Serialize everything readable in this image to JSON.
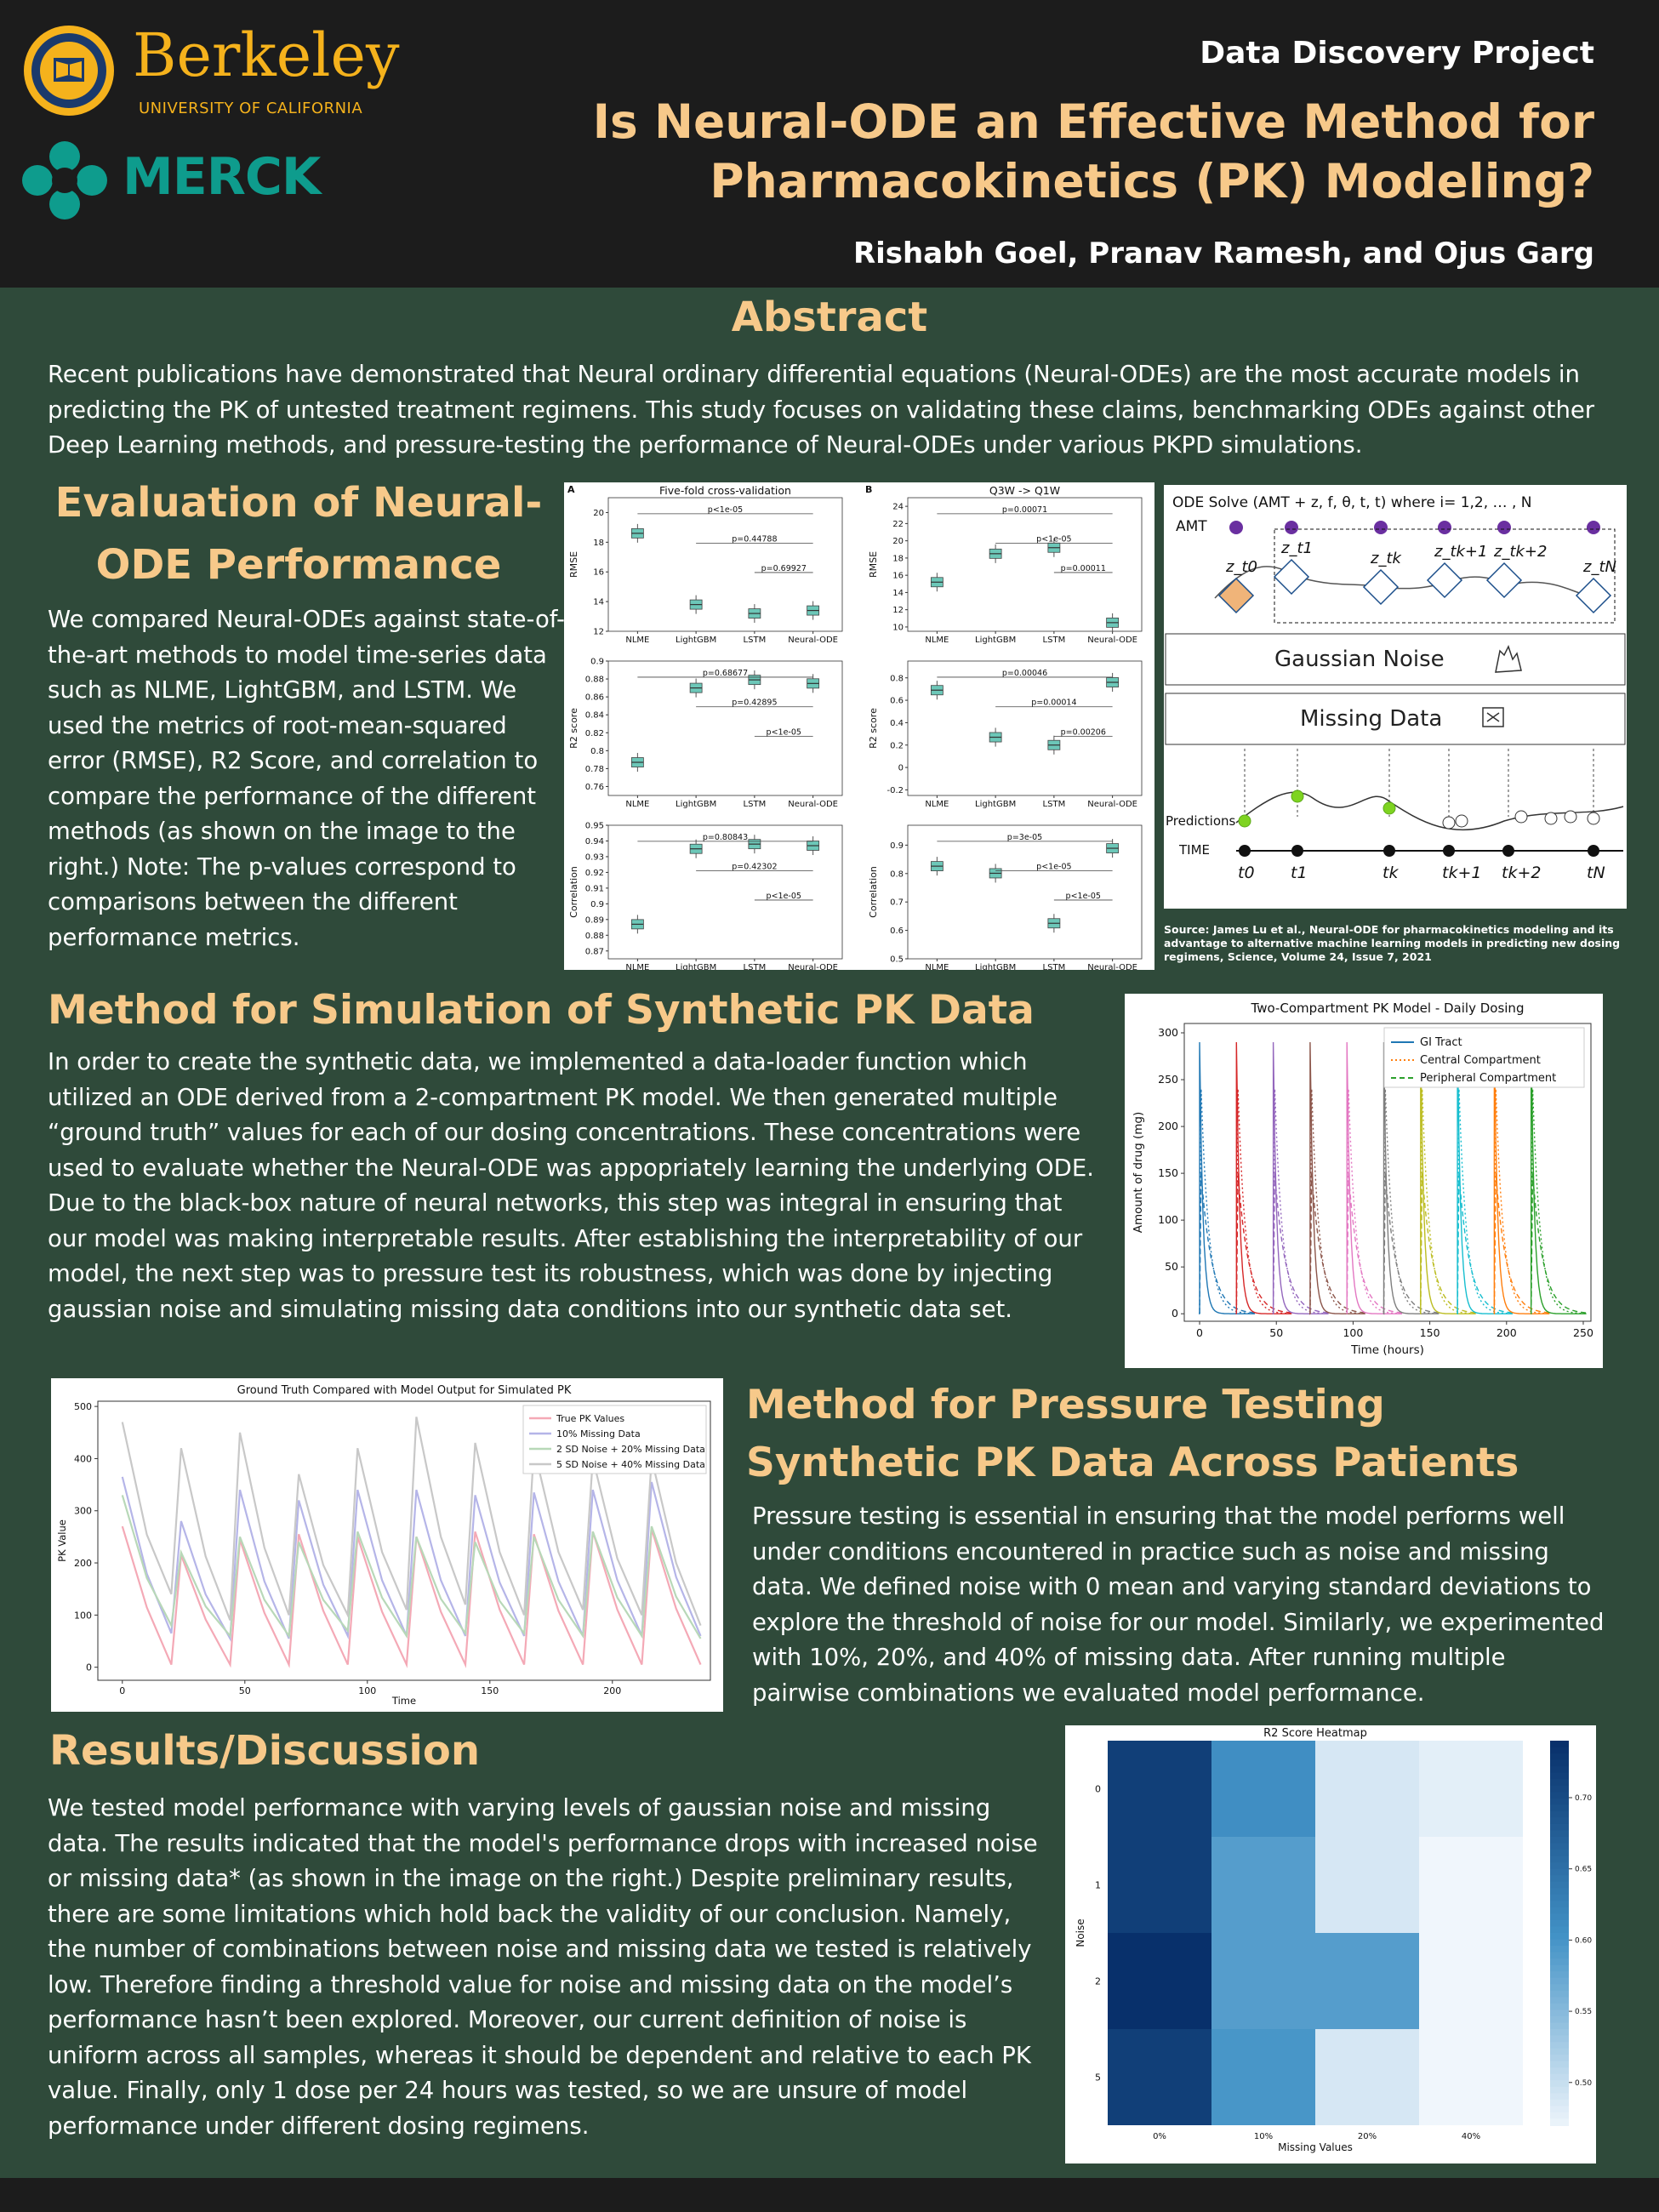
{
  "header": {
    "berkeley_wordmark": "Berkeley",
    "berkeley_sub": "UNIVERSITY OF CALIFORNIA",
    "merck_wordmark": "MERCK",
    "project": "Data Discovery Project",
    "title_line1": "Is Neural-ODE an Effective Method for",
    "title_line2": "Pharmacokinetics (PK) Modeling?",
    "authors": "Rishabh Goel, Pranav Ramesh, and Ojus Garg"
  },
  "abstract": {
    "heading": "Abstract",
    "text": "Recent publications have demonstrated that Neural ordinary differential equations (Neural-ODEs) are the most accurate models in predicting the PK of untested treatment regimens. This study focuses on validating these claims, benchmarking ODEs against other Deep Learning methods, and pressure-testing the performance of Neural-ODEs under various PKPD simulations."
  },
  "evaluation": {
    "heading_line1": "Evaluation of Neural-",
    "heading_line2": "ODE Performance",
    "text": "We compared Neural-ODEs against state-of-the-art methods to model time-series data such as NLME, LightGBM, and LSTM. We used the metrics of root-mean-squared error (RMSE), R2 Score, and correlation to compare the performance of the different methods (as shown on the image to the right.) Note: The p-values correspond to comparisons between the different performance metrics."
  },
  "diagram": {
    "ode_label": "ODE Solve (AMT + z, f, θ, t, t) where i= 1,2, … , N",
    "amt_label": "AMT",
    "z_labels": [
      "z_t0",
      "z_t1",
      "z_tk",
      "z_tk+1",
      "z_tk+2",
      "z_tN"
    ],
    "gaussian_noise": "Gaussian Noise",
    "missing_data": "Missing Data",
    "predictions_label": "Predictions",
    "time_label": "TIME",
    "t_labels": [
      "t0",
      "t1",
      "tk",
      "tk+1",
      "tk+2",
      "tN"
    ],
    "source": "Source: James Lu et al., Neural-ODE for pharmacokinetics modeling and its advantage to alternative machine learning models in predicting new dosing regimens, Science, Volume 24, Issue 7, 2021"
  },
  "method_sim": {
    "heading": "Method for Simulation of Synthetic PK Data",
    "text": "In order to create the synthetic data, we implemented a data-loader function which utilized an ODE derived from a 2-compartment PK model. We then generated multiple “ground truth” values for each of our dosing concentrations. These concentrations were used to evaluate whether the Neural-ODE was appopriately learning the underlying ODE. Due to the black-box nature of neural networks, this step was integral in ensuring that our model was making interpretable results. After establishing the interpretability of our model, the next step was to pressure test its robustness, which was done by injecting gaussian noise and simulating missing data conditions into our synthetic data set."
  },
  "method_pressure": {
    "heading_line1": "Method for Pressure Testing",
    "heading_line2": "Synthetic PK Data Across Patients",
    "text": "Pressure testing is essential in ensuring that the model performs well under conditions encountered in practice such as noise and missing data. We defined noise with 0 mean and varying standard deviations to explore the threshold of noise for our model. Similarly, we experimented with 10%, 20%, and 40% of missing data. After running multiple pairwise combinations we evaluated model performance."
  },
  "results": {
    "heading": "Results/Discussion",
    "text": "We tested model performance with varying levels of gaussian noise and missing data. The results indicated that the model's performance drops with increased noise or missing data* (as shown in the image on the right.) Despite preliminary results, there are some limitations which hold back the validity of our conclusion. Namely, the number of combinations between noise and missing data we tested is relatively low. Therefore finding a threshold value for noise and missing data on the model’s performance hasn’t been explored. Moreover, our current definition of noise is uniform across all samples, whereas it should be dependent and relative to each PK value. Finally, only 1 dose per 24 hours was tested, so we are unsure of model performance under different dosing regimens."
  },
  "chart_data": [
    {
      "type": "box",
      "panel": "A",
      "title": "Five-fold cross-validation",
      "categories": [
        "NLME",
        "LightGBM",
        "LSTM",
        "Neural-ODE"
      ],
      "subplots": [
        {
          "ylabel": "RMSE",
          "yticks": [
            12,
            14,
            16,
            18,
            20
          ],
          "ylim": [
            12,
            21
          ],
          "medians": [
            18.6,
            13.8,
            13.2,
            13.4
          ],
          "pvalues": [
            "p<1e-05",
            "p=0.44788",
            "p=0.69927"
          ]
        },
        {
          "ylabel": "R2 score",
          "yticks": [
            0.76,
            0.78,
            0.8,
            0.82,
            0.84,
            0.86,
            0.88,
            0.9
          ],
          "ylim": [
            0.75,
            0.9
          ],
          "medians": [
            0.787,
            0.87,
            0.879,
            0.875
          ],
          "pvalues": [
            "p=0.68677",
            "p=0.42895",
            "p<1e-05"
          ]
        },
        {
          "ylabel": "Correlation",
          "yticks": [
            0.87,
            0.88,
            0.89,
            0.9,
            0.91,
            0.92,
            0.93,
            0.94,
            0.95
          ],
          "ylim": [
            0.865,
            0.95
          ],
          "medians": [
            0.887,
            0.935,
            0.938,
            0.937
          ],
          "pvalues": [
            "p=0.80843",
            "p=0.42302",
            "p<1e-05"
          ]
        }
      ]
    },
    {
      "type": "box",
      "panel": "B",
      "title": "Q3W -> Q1W",
      "categories": [
        "NLME",
        "LightGBM",
        "LSTM",
        "Neural-ODE"
      ],
      "subplots": [
        {
          "ylabel": "RMSE",
          "yticks": [
            10,
            12,
            14,
            16,
            18,
            20,
            22,
            24
          ],
          "ylim": [
            9.5,
            25
          ],
          "medians": [
            15.2,
            18.5,
            19.2,
            10.5
          ],
          "pvalues": [
            "p=0.00071",
            "p<1e-05",
            "p=0.00011"
          ]
        },
        {
          "ylabel": "R2 score",
          "yticks": [
            -0.2,
            0.0,
            0.2,
            0.4,
            0.6,
            0.8
          ],
          "ylim": [
            -0.25,
            0.95
          ],
          "medians": [
            0.69,
            0.27,
            0.2,
            0.76
          ],
          "pvalues": [
            "p=0.00046",
            "p=0.00014",
            "p=0.00206"
          ]
        },
        {
          "ylabel": "Correlation",
          "yticks": [
            0.5,
            0.6,
            0.7,
            0.8,
            0.9
          ],
          "ylim": [
            0.5,
            0.97
          ],
          "medians": [
            0.826,
            0.801,
            0.625,
            0.889
          ],
          "pvalues": [
            "p=3e-05",
            "p<1e-05",
            "p<1e-05"
          ]
        }
      ]
    },
    {
      "type": "line",
      "title": "Two-Compartment PK Model - Daily Dosing",
      "xlabel": "Time (hours)",
      "ylabel": "Amount of drug (mg)",
      "xticks": [
        0,
        50,
        100,
        150,
        200,
        250
      ],
      "yticks": [
        0,
        50,
        100,
        150,
        200,
        250,
        300
      ],
      "xlim": [
        -10,
        255
      ],
      "ylim": [
        -8,
        310
      ],
      "dose_times": [
        0,
        24,
        48,
        72,
        96,
        120,
        144,
        168,
        192,
        216
      ],
      "series": [
        {
          "name": "GI Tract",
          "style": "solid",
          "color": "#1f77b4",
          "peak": 290
        },
        {
          "name": "Central Compartment",
          "style": "dotted",
          "color": "#ff7f0e",
          "peak": 240
        },
        {
          "name": "Peripheral Compartment",
          "style": "dashed",
          "color": "#2ca02c",
          "peak": 150
        }
      ]
    },
    {
      "type": "line",
      "title": "Ground Truth Compared with Model Output for Simulated PK",
      "xlabel": "Time",
      "ylabel": "PK Value",
      "xticks": [
        0,
        50,
        100,
        150,
        200
      ],
      "yticks": [
        0,
        100,
        200,
        300,
        400,
        500
      ],
      "xlim": [
        -10,
        240
      ],
      "ylim": [
        -25,
        510
      ],
      "series": [
        {
          "name": "True PK Values",
          "color": "#f4a9b6",
          "peaks": [
            270,
            215,
            245,
            255,
            250,
            250,
            260,
            255,
            260,
            265
          ],
          "troughs": [
            5,
            5,
            5,
            5,
            5,
            5,
            5,
            5,
            5,
            5
          ]
        },
        {
          "name": "10% Missing Data",
          "color": "#b5b5e8",
          "peaks": [
            365,
            280,
            340,
            320,
            340,
            340,
            330,
            335,
            340,
            355
          ],
          "troughs": [
            65,
            55,
            55,
            60,
            60,
            60,
            60,
            60,
            60,
            60
          ]
        },
        {
          "name": "2 SD Noise + 20% Missing Data",
          "color": "#b8d8b8",
          "peaks": [
            330,
            220,
            250,
            240,
            260,
            250,
            240,
            250,
            260,
            270
          ],
          "troughs": [
            80,
            60,
            60,
            70,
            60,
            65,
            65,
            60,
            60,
            55
          ]
        },
        {
          "name": "5 SD Noise + 40% Missing Data",
          "color": "#c8c8c8",
          "peaks": [
            470,
            420,
            450,
            370,
            420,
            480,
            430,
            420,
            400,
            400
          ],
          "troughs": [
            140,
            90,
            100,
            100,
            110,
            120,
            100,
            110,
            100,
            80
          ]
        }
      ]
    },
    {
      "type": "heatmap",
      "title": "R2 Score Heatmap",
      "xlabel": "Missing Values",
      "ylabel": "Noise",
      "x": [
        "0%",
        "10%",
        "20%",
        "40%"
      ],
      "y": [
        "0",
        "1",
        "2",
        "5"
      ],
      "values": [
        [
          0.72,
          0.61,
          0.49,
          0.48
        ],
        [
          0.72,
          0.59,
          0.49,
          0.47
        ],
        [
          0.74,
          0.59,
          0.59,
          0.47
        ],
        [
          0.72,
          0.6,
          0.49,
          0.47
        ]
      ],
      "colorbar_ticks": [
        0.5,
        0.55,
        0.6,
        0.65,
        0.7
      ],
      "range": [
        0.47,
        0.74
      ]
    }
  ]
}
